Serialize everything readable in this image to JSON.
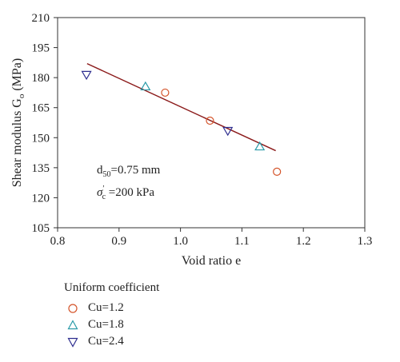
{
  "chart_data": {
    "type": "scatter",
    "xlabel": "Void ratio e",
    "ylabel": {
      "main": "Shear modulus G",
      "sub": "o",
      "unit": "(MPa)"
    },
    "xlim": [
      0.8,
      1.3
    ],
    "ylim": [
      105,
      210
    ],
    "xticks": [
      0.8,
      0.9,
      1.0,
      1.1,
      1.2,
      1.3
    ],
    "xtick_labels": [
      "0.8",
      "0.9",
      "1.0",
      "1.1",
      "1.2",
      "1.3"
    ],
    "yticks": [
      105,
      120,
      135,
      150,
      165,
      180,
      195,
      210
    ],
    "ytick_labels": [
      "105",
      "120",
      "135",
      "150",
      "165",
      "180",
      "195",
      "210"
    ],
    "grid": false,
    "series": [
      {
        "name": "Cu=1.2",
        "marker": "circle",
        "color": "#d4542a",
        "x": [
          0.975,
          1.048,
          1.157
        ],
        "y": [
          172.5,
          158.5,
          133
        ]
      },
      {
        "name": "Cu=1.8",
        "marker": "triangle-up",
        "color": "#2a9aa8",
        "x": [
          0.943,
          1.129
        ],
        "y": [
          175.5,
          145.5
        ]
      },
      {
        "name": "Cu=2.4",
        "marker": "triangle-down",
        "color": "#2e2e8f",
        "x": [
          0.847,
          1.077
        ],
        "y": [
          181.5,
          153.5
        ]
      }
    ],
    "fit_line": {
      "color": "#8b1a1a",
      "x": [
        0.848,
        1.155
      ],
      "y": [
        187,
        143.5
      ]
    },
    "annotations": {
      "d50": {
        "base": "d",
        "sub": "50",
        "rest": "=0.75 mm"
      },
      "sigma": {
        "base": "σ",
        "sub": "c",
        "sup": "′",
        "rest": " =200 kPa"
      }
    },
    "legend": {
      "title": "Uniform coefficient",
      "entries": [
        "Cu=1.2",
        "Cu=1.8",
        "Cu=2.4"
      ],
      "placement": "bottom-left, outside plot"
    }
  }
}
